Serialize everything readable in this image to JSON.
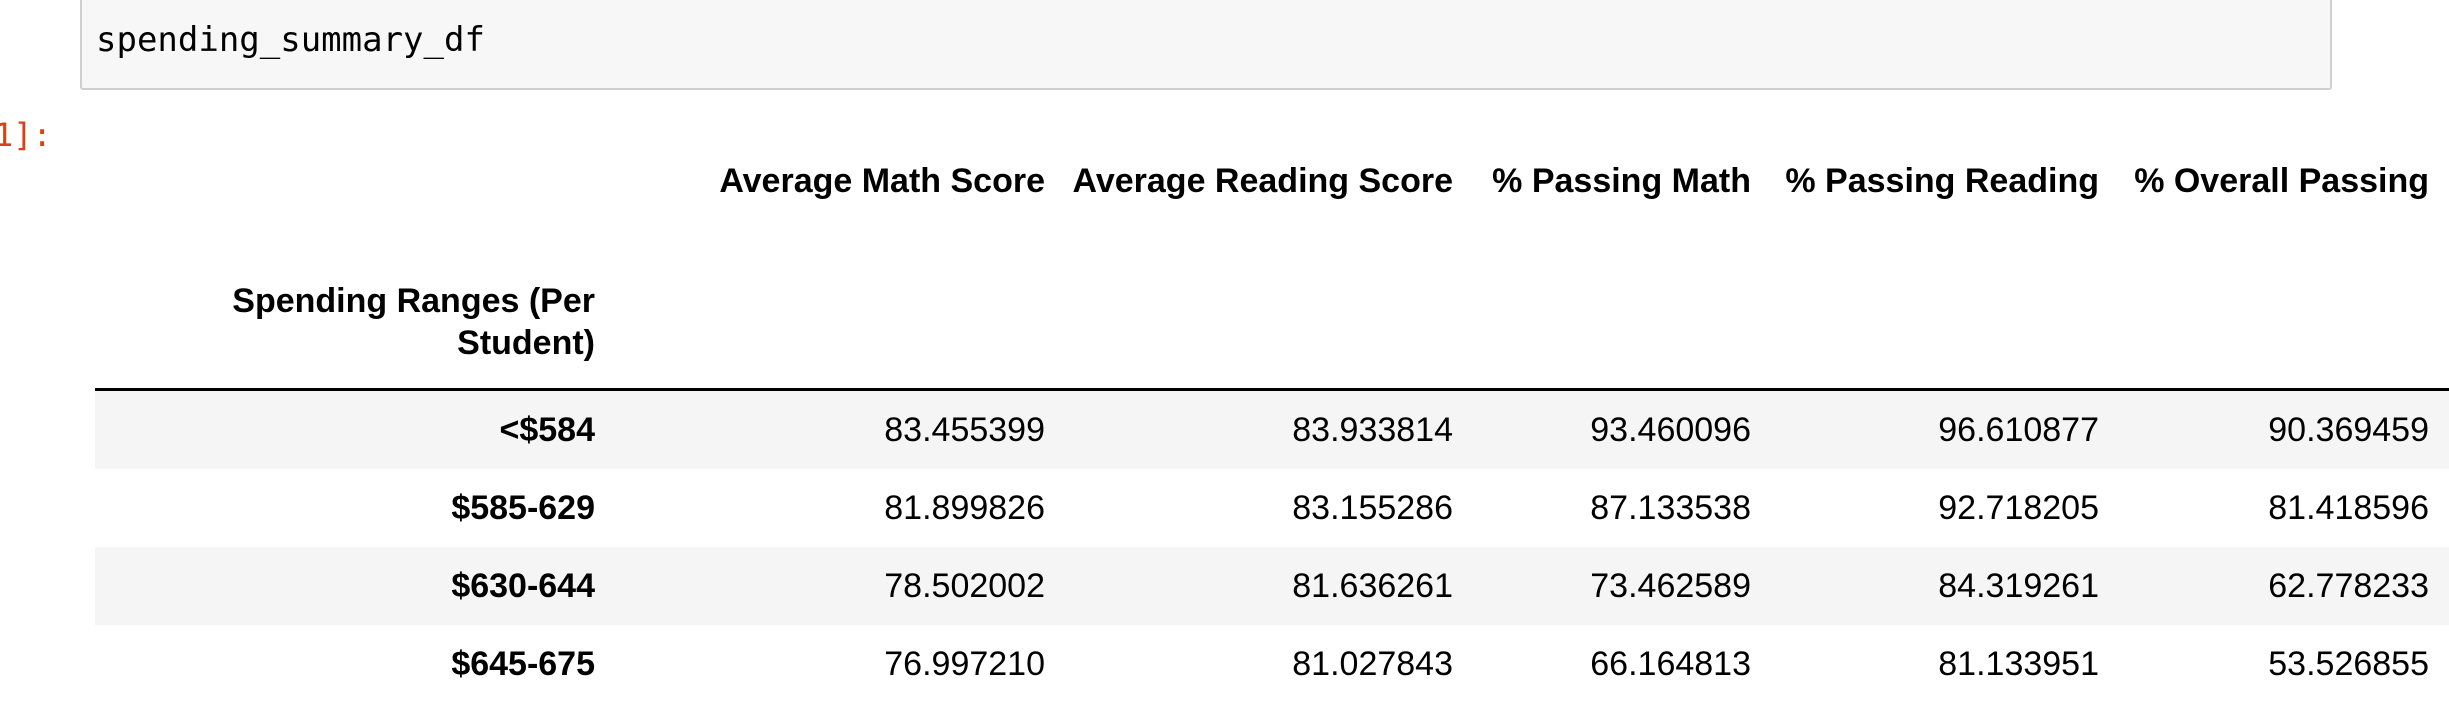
{
  "input_cell": {
    "code": "spending_summary_df"
  },
  "output_prompt": "1]:",
  "table": {
    "columns": [
      "Average Math Score",
      "Average Reading Score",
      "% Passing Math",
      "% Passing Reading",
      "% Overall Passing"
    ],
    "index_name": "Spending Ranges (Per Student)",
    "rows": [
      {
        "label": "<$584",
        "values": [
          "83.455399",
          "83.933814",
          "93.460096",
          "96.610877",
          "90.369459"
        ]
      },
      {
        "label": "$585-629",
        "values": [
          "81.899826",
          "83.155286",
          "87.133538",
          "92.718205",
          "81.418596"
        ]
      },
      {
        "label": "$630-644",
        "values": [
          "78.502002",
          "81.636261",
          "73.462589",
          "84.319261",
          "62.778233"
        ]
      },
      {
        "label": "$645-675",
        "values": [
          "76.997210",
          "81.027843",
          "66.164813",
          "81.133951",
          "53.526855"
        ]
      }
    ]
  }
}
